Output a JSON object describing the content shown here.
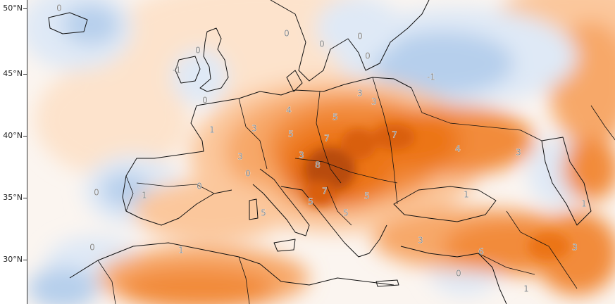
{
  "map": {
    "lat_labels": [
      "50°N",
      "45°N",
      "40°N",
      "35°N",
      "30°N"
    ],
    "contour_labels": [
      {
        "id": "0-iceland",
        "text": "0"
      },
      {
        "id": "0-scotland",
        "text": "0"
      },
      {
        "id": "1-ireland",
        "text": "-1"
      },
      {
        "id": "0-england",
        "text": "0"
      },
      {
        "id": "0-norway",
        "text": "0"
      },
      {
        "id": "0-sweden",
        "text": "0"
      },
      {
        "id": "0-baltic",
        "text": "0"
      },
      {
        "id": "0-finland",
        "text": "0"
      },
      {
        "id": "m1-russia",
        "text": "-1"
      },
      {
        "id": "1-biscay",
        "text": "1"
      },
      {
        "id": "3-france",
        "text": "3"
      },
      {
        "id": "4-germany",
        "text": "4"
      },
      {
        "id": "5-poland",
        "text": "5"
      },
      {
        "id": "3-lithuania",
        "text": "3"
      },
      {
        "id": "3-belarus",
        "text": "3"
      },
      {
        "id": "5-czech",
        "text": "5"
      },
      {
        "id": "7-slovakia",
        "text": "7"
      },
      {
        "id": "7-ukraine",
        "text": "7"
      },
      {
        "id": "4-east",
        "text": "4"
      },
      {
        "id": "3-austria",
        "text": "3"
      },
      {
        "id": "8-hungary",
        "text": "8"
      },
      {
        "id": "7-serbia",
        "text": "7"
      },
      {
        "id": "5-romania",
        "text": "5"
      },
      {
        "id": "5-bosnia",
        "text": "5"
      },
      {
        "id": "5-bulgaria",
        "text": "5"
      },
      {
        "id": "3-alps",
        "text": "3"
      },
      {
        "id": "0-switz",
        "text": "0"
      },
      {
        "id": "0-portugal",
        "text": "0"
      },
      {
        "id": "1-spain",
        "text": "1"
      },
      {
        "id": "0-spain",
        "text": "0"
      },
      {
        "id": "5-italy",
        "text": "5"
      },
      {
        "id": "1-blacksea",
        "text": "1"
      },
      {
        "id": "3-caspian",
        "text": "3"
      },
      {
        "id": "1-kazakh",
        "text": "1"
      },
      {
        "id": "0-morocco",
        "text": "0"
      },
      {
        "id": "1-algeria",
        "text": "1"
      },
      {
        "id": "3-turkey",
        "text": "3"
      },
      {
        "id": "6-turkey",
        "text": "6"
      },
      {
        "id": "3-iran",
        "text": "3"
      },
      {
        "id": "0-levant",
        "text": "0"
      },
      {
        "id": "1-arabia",
        "text": "1"
      }
    ],
    "colors": {
      "cold_light": "#dfe9f6",
      "cold_mid": "#b6cfec",
      "cold_dark": "#7fa8da",
      "neutral": "#fbf5f0",
      "warm_1": "#fde3cc",
      "warm_2": "#fbc79c",
      "warm_3": "#f7a869",
      "warm_4": "#f28b3a",
      "warm_5": "#ec7418",
      "warm_6": "#d95f0a",
      "warm_7": "#b84c07",
      "warm_8": "#963d0a",
      "border": "#111111"
    }
  }
}
